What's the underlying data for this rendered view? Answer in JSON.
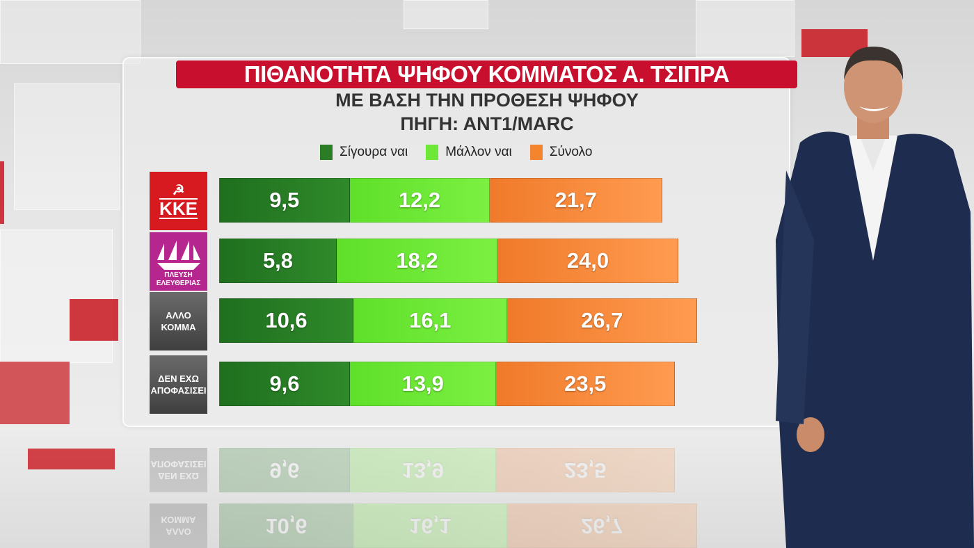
{
  "title": "ΠΙΘΑΝΟΤΗΤΑ ΨΗΦΟΥ ΚΟΜΜΑΤΟΣ Α. ΤΣΙΠΡΑ",
  "subtitle": "ΜΕ ΒΑΣΗ ΤΗΝ ΠΡΟΘΕΣΗ ΨΗΦΟΥ",
  "source": "ΠΗΓΗ: ΑΝΤ1/MARC",
  "colors": {
    "title_bg": "#c8102e",
    "dark_green": "#2a7d25",
    "light_green": "#6ee836",
    "orange": "#f5842f"
  },
  "chart_data": {
    "type": "bar",
    "orientation": "horizontal",
    "title": "ΠΙΘΑΝΟΤΗΤΑ ΨΗΦΟΥ ΚΟΜΜΑΤΟΣ Α. ΤΣΙΠΡΑ",
    "subtitle": "ΜΕ ΒΑΣΗ ΤΗΝ ΠΡΟΘΕΣΗ ΨΗΦΟΥ",
    "legend_placement": "top",
    "grid": false,
    "categories": [
      "ΚΚΕ",
      "ΠΛΕΥΣΗ ΕΛΕΥΘΕΡΙΑΣ",
      "ΑΛΛΟ ΚΟΜΜΑ",
      "ΔΕΝ ΕΧΩ ΑΠΟΦΑΣΙΣΕΙ"
    ],
    "category_colors": [
      "#d71920",
      "#b5278f",
      "#555555",
      "#555555"
    ],
    "series": [
      {
        "name": "Σίγουρα ναι",
        "color": "#2a7d25",
        "values": [
          "9,5",
          "5,8",
          "10,6",
          "9,6"
        ]
      },
      {
        "name": "Μάλλον ναι",
        "color": "#6ee836",
        "values": [
          "12,2",
          "18,2",
          "16,1",
          "13,9"
        ]
      },
      {
        "name": "Σύνολο",
        "color": "#f5842f",
        "values": [
          "21,7",
          "24,0",
          "26,7",
          "23,5"
        ]
      }
    ]
  }
}
